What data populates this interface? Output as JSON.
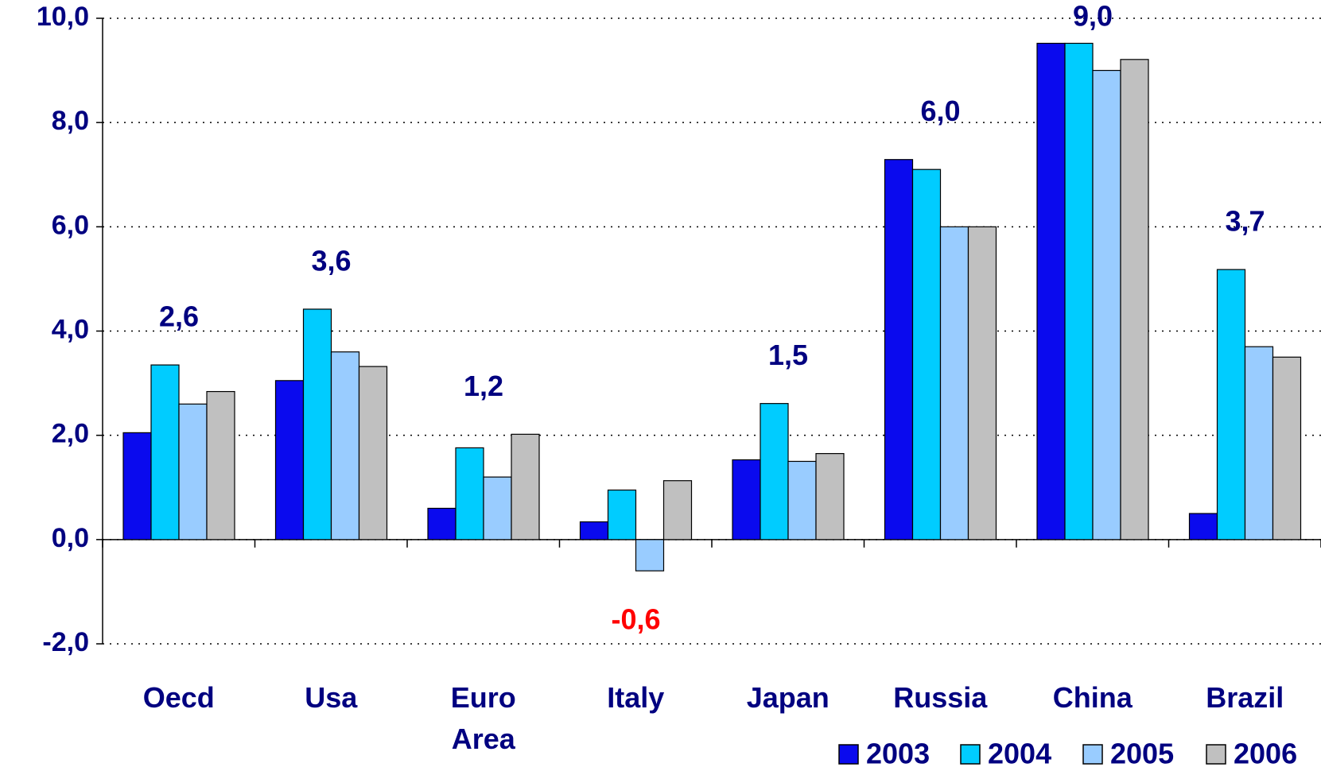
{
  "chart_data": {
    "type": "bar",
    "categories": [
      "Oecd",
      "Usa",
      "Euro Area",
      "Italy",
      "Japan",
      "Russia",
      "China",
      "Brazil"
    ],
    "series": [
      {
        "name": "2003",
        "color": "#0a0aee",
        "values": [
          2.05,
          3.05,
          0.6,
          0.34,
          1.53,
          7.29,
          9.52,
          0.5
        ]
      },
      {
        "name": "2004",
        "color": "#00ccff",
        "values": [
          3.35,
          4.42,
          1.76,
          0.95,
          2.61,
          7.1,
          9.52,
          5.18
        ]
      },
      {
        "name": "2005",
        "color": "#99ccff",
        "values": [
          2.6,
          3.6,
          1.2,
          -0.6,
          1.5,
          6.0,
          9.0,
          3.7
        ],
        "value_labels": [
          "2,6",
          "3,6",
          "1,2",
          "-0,6",
          "1,5",
          "6,0",
          "9,0",
          "3,7"
        ]
      },
      {
        "name": "2006",
        "color": "#c0c0c0",
        "values": [
          2.84,
          3.32,
          2.02,
          1.13,
          1.65,
          6.0,
          9.21,
          3.5
        ]
      }
    ],
    "ylim": [
      -2,
      10
    ],
    "yticks": [
      {
        "value": -2,
        "label": "-2,0"
      },
      {
        "value": 0,
        "label": "0,0"
      },
      {
        "value": 2,
        "label": "2,0"
      },
      {
        "value": 4,
        "label": "4,0"
      },
      {
        "value": 6,
        "label": "6,0"
      },
      {
        "value": 8,
        "label": "8,0"
      },
      {
        "value": 10,
        "label": "10,0"
      }
    ],
    "grid": true,
    "legend": "bottom-right",
    "label_color": "#000080",
    "negative_label_color": "#ff0000"
  }
}
